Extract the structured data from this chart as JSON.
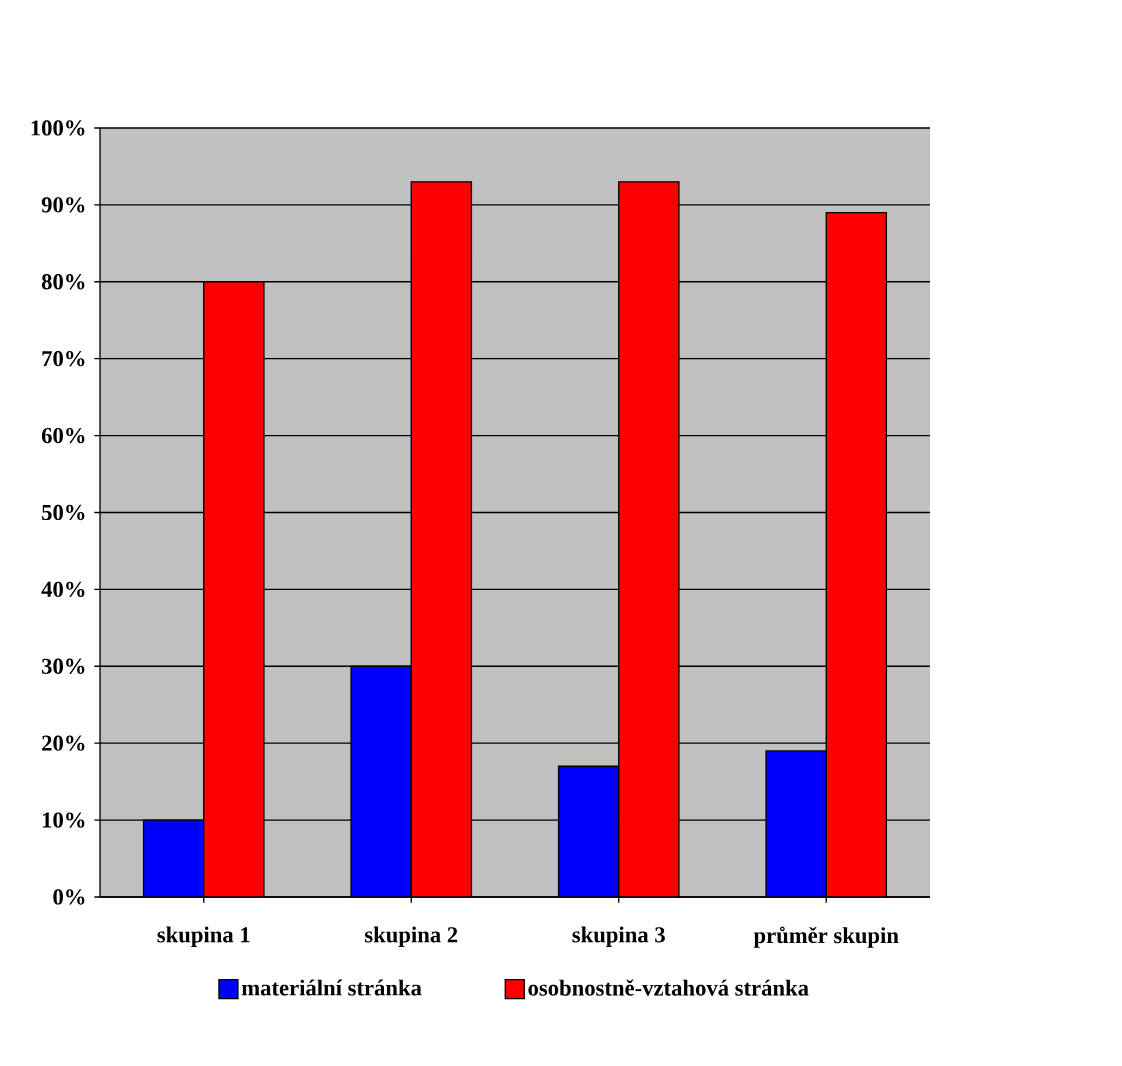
{
  "chart_data": {
    "type": "bar",
    "categories": [
      "skupina 1",
      "skupina 2",
      "skupina 3",
      "průměr skupin"
    ],
    "series": [
      {
        "name": "materiální stránka",
        "color": "#0000ff",
        "values": [
          10,
          30,
          17,
          19
        ]
      },
      {
        "name": "osobnostně-vztahová stránka",
        "color": "#ff0000",
        "values": [
          80,
          93,
          93,
          89
        ]
      }
    ],
    "ylim": [
      0,
      100
    ],
    "yticks": [
      {
        "value": 0,
        "label": "0%"
      },
      {
        "value": 10,
        "label": "10%"
      },
      {
        "value": 20,
        "label": "20%"
      },
      {
        "value": 30,
        "label": "30%"
      },
      {
        "value": 40,
        "label": "40%"
      },
      {
        "value": 50,
        "label": "50%"
      },
      {
        "value": 60,
        "label": "60%"
      },
      {
        "value": 70,
        "label": "70%"
      },
      {
        "value": 80,
        "label": "80%"
      },
      {
        "value": 90,
        "label": "90%"
      },
      {
        "value": 100,
        "label": "100%"
      }
    ],
    "grid": "y",
    "legend": "bottom"
  }
}
